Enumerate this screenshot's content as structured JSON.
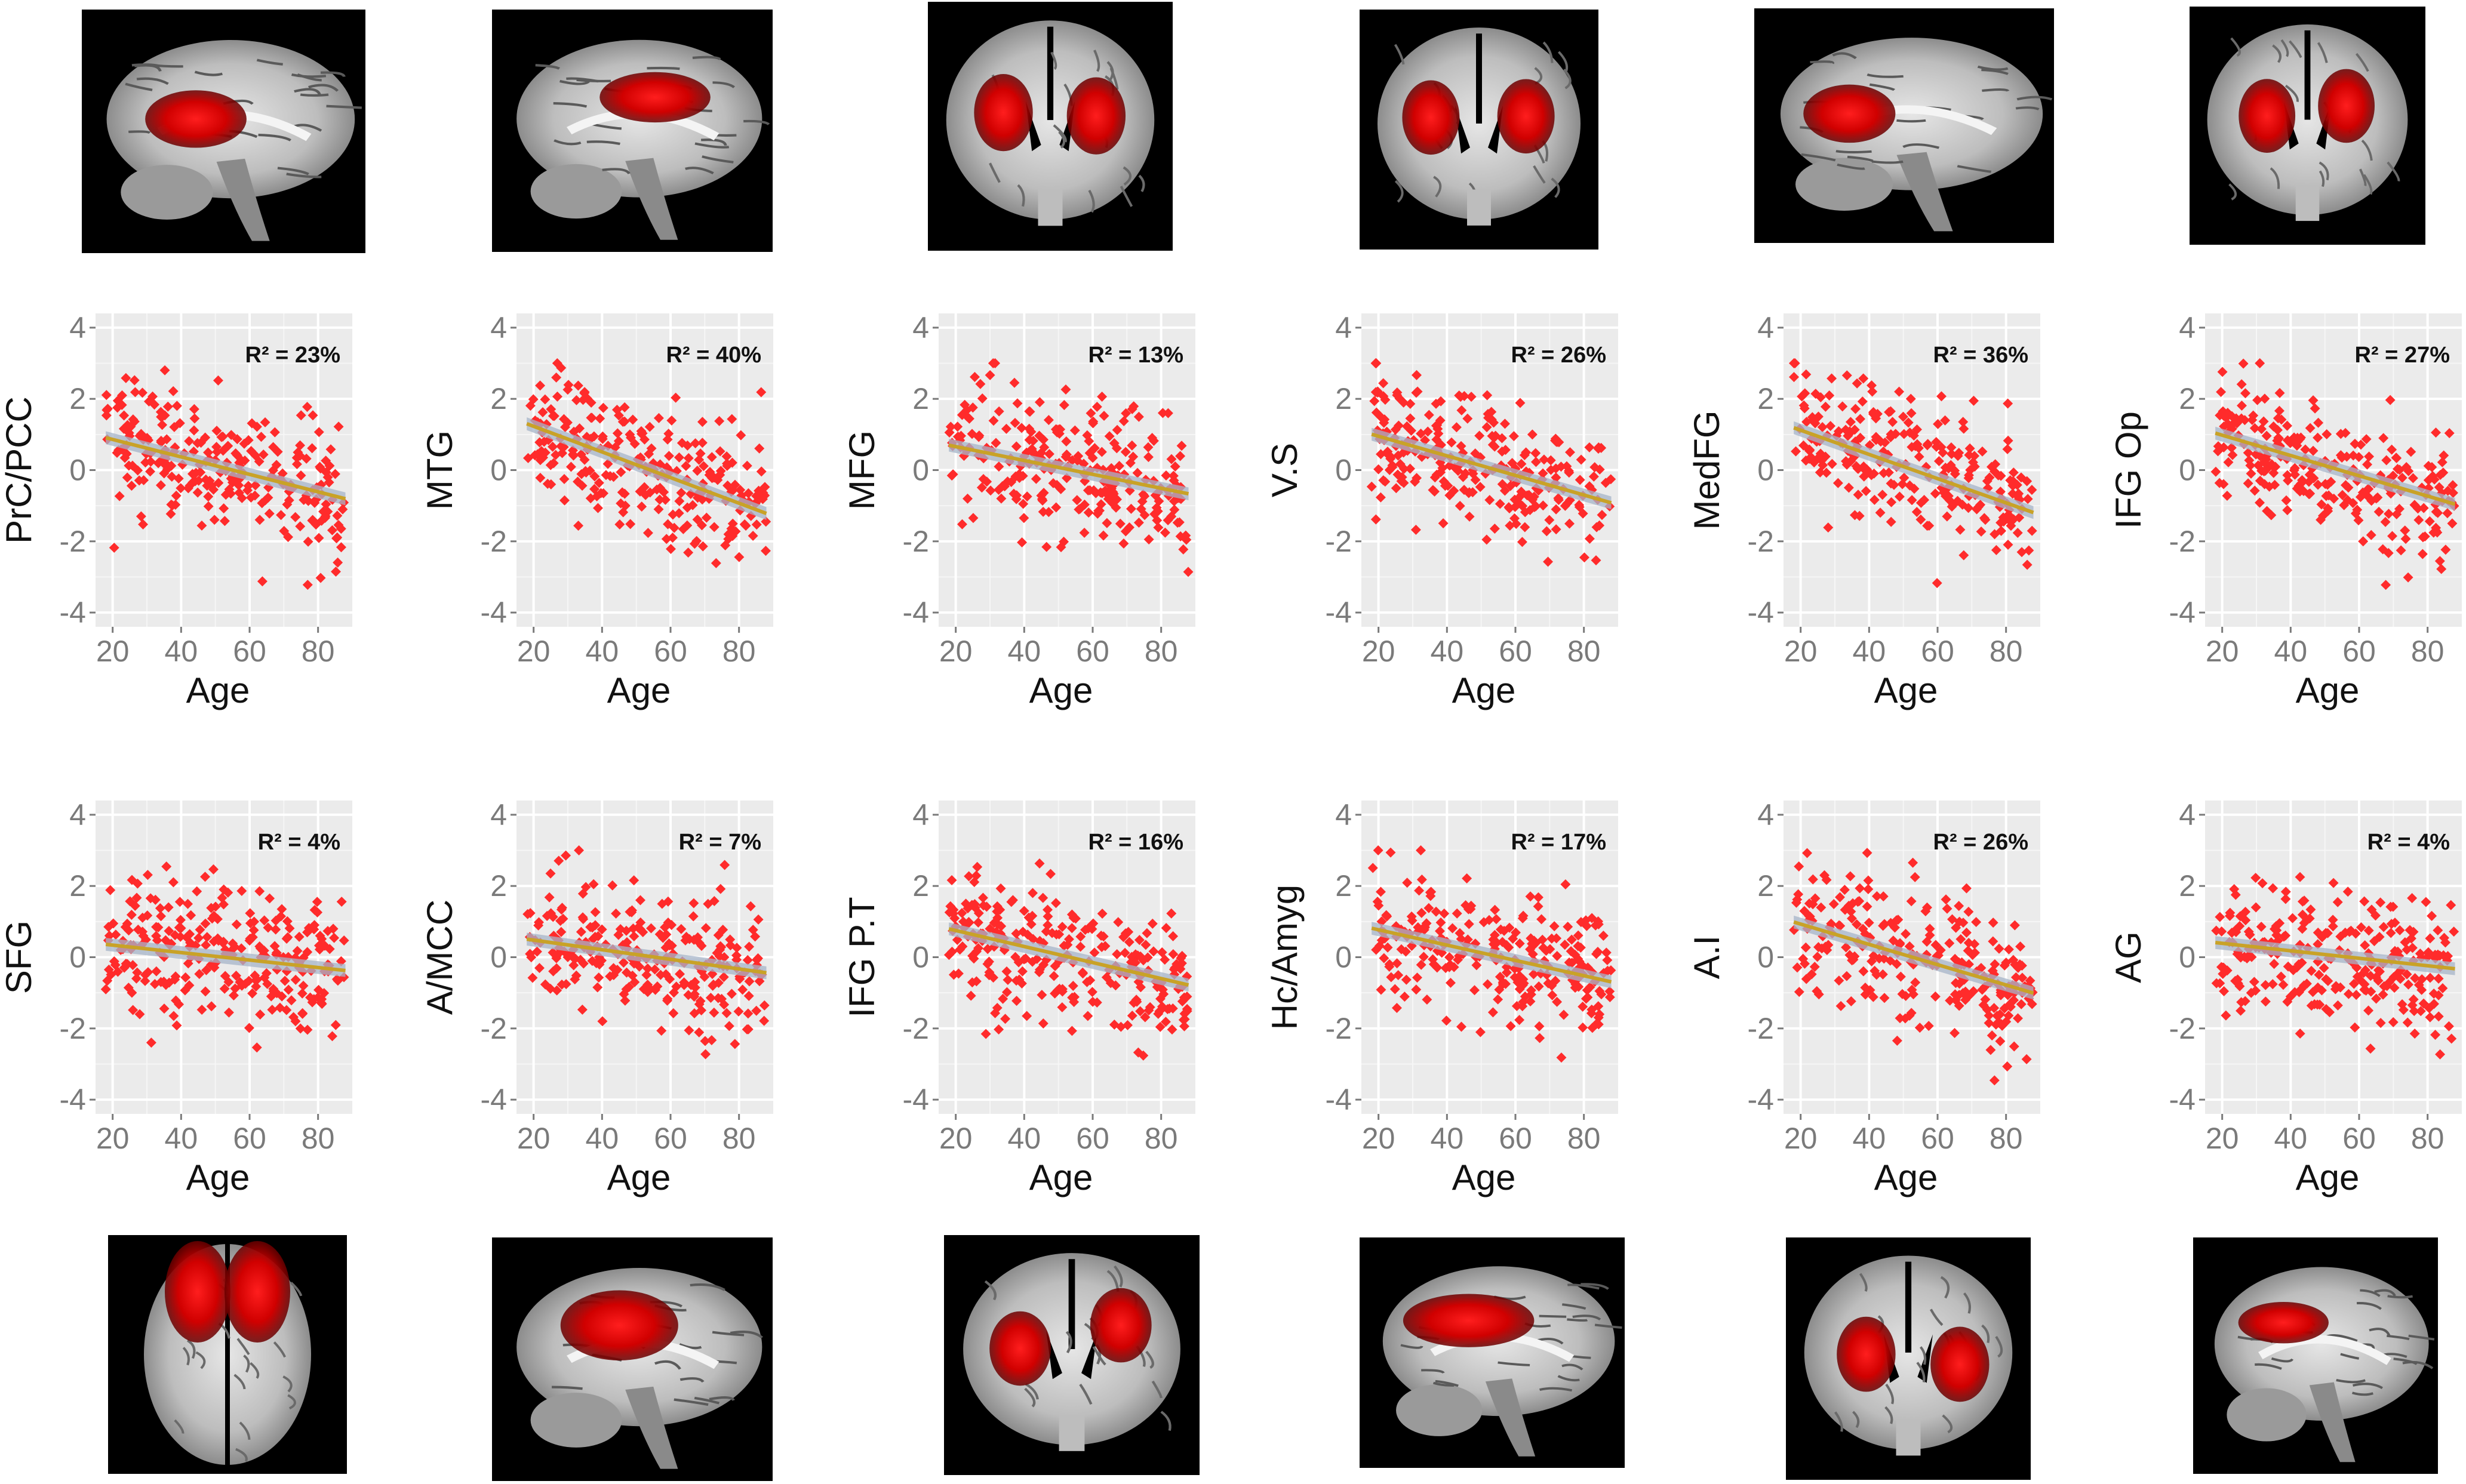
{
  "chart_data": [
    {
      "type": "scatter",
      "ylabel": "PrC/PCC",
      "xlabel": "Age",
      "annotation": "R² = 23%",
      "x_ticks": [
        20,
        40,
        60,
        80
      ],
      "y_ticks": [
        4,
        2,
        0,
        -2,
        -4
      ],
      "xlim": [
        15,
        90
      ],
      "ylim": [
        -4.4,
        4.4
      ],
      "trend": {
        "slope": -0.0245,
        "intercept": 1.35
      },
      "grid": true,
      "point_count": 260,
      "colors": {
        "points": "#ff2b2b",
        "trend": "#c9a227",
        "band": "#a6b4c8",
        "panel": "#ebebeb"
      }
    },
    {
      "type": "scatter",
      "ylabel": "MTG",
      "xlabel": "Age",
      "annotation": "R² = 40%",
      "x_ticks": [
        20,
        40,
        60,
        80
      ],
      "y_ticks": [
        4,
        2,
        0,
        -2,
        -4
      ],
      "xlim": [
        15,
        90
      ],
      "ylim": [
        -4.4,
        4.4
      ],
      "trend": {
        "slope": -0.036,
        "intercept": 1.95
      },
      "grid": true,
      "point_count": 260,
      "colors": {
        "points": "#ff2b2b",
        "trend": "#c9a227",
        "band": "#a6b4c8",
        "panel": "#ebebeb"
      }
    },
    {
      "type": "scatter",
      "ylabel": "MFG",
      "xlabel": "Age",
      "annotation": "R² = 13%",
      "x_ticks": [
        20,
        40,
        60,
        80
      ],
      "y_ticks": [
        4,
        2,
        0,
        -2,
        -4
      ],
      "xlim": [
        15,
        90
      ],
      "ylim": [
        -4.4,
        4.4
      ],
      "trend": {
        "slope": -0.0195,
        "intercept": 1.05
      },
      "grid": true,
      "point_count": 260,
      "colors": {
        "points": "#ff2b2b",
        "trend": "#c9a227",
        "band": "#a6b4c8",
        "panel": "#ebebeb"
      }
    },
    {
      "type": "scatter",
      "ylabel": "V.S",
      "xlabel": "Age",
      "annotation": "R² = 26%",
      "x_ticks": [
        20,
        40,
        60,
        80
      ],
      "y_ticks": [
        4,
        2,
        0,
        -2,
        -4
      ],
      "xlim": [
        15,
        90
      ],
      "ylim": [
        -4.4,
        4.4
      ],
      "trend": {
        "slope": -0.0275,
        "intercept": 1.5
      },
      "grid": true,
      "point_count": 260,
      "colors": {
        "points": "#ff2b2b",
        "trend": "#c9a227",
        "band": "#a6b4c8",
        "panel": "#ebebeb"
      }
    },
    {
      "type": "scatter",
      "ylabel": "MedFG",
      "xlabel": "Age",
      "annotation": "R² = 36%",
      "x_ticks": [
        20,
        40,
        60,
        80
      ],
      "y_ticks": [
        4,
        2,
        0,
        -2,
        -4
      ],
      "xlim": [
        15,
        90
      ],
      "ylim": [
        -4.4,
        4.4
      ],
      "trend": {
        "slope": -0.034,
        "intercept": 1.8
      },
      "grid": true,
      "point_count": 260,
      "colors": {
        "points": "#ff2b2b",
        "trend": "#c9a227",
        "band": "#a6b4c8",
        "panel": "#ebebeb"
      }
    },
    {
      "type": "scatter",
      "ylabel": "IFG Op",
      "xlabel": "Age",
      "annotation": "R² = 27%",
      "x_ticks": [
        20,
        40,
        60,
        80
      ],
      "y_ticks": [
        4,
        2,
        0,
        -2,
        -4
      ],
      "xlim": [
        15,
        90
      ],
      "ylim": [
        -4.4,
        4.4
      ],
      "trend": {
        "slope": -0.0285,
        "intercept": 1.55
      },
      "grid": true,
      "point_count": 260,
      "colors": {
        "points": "#ff2b2b",
        "trend": "#c9a227",
        "band": "#a6b4c8",
        "panel": "#ebebeb"
      }
    },
    {
      "type": "scatter",
      "ylabel": "SFG",
      "xlabel": "Age",
      "annotation": "R² = 4%",
      "x_ticks": [
        20,
        40,
        60,
        80
      ],
      "y_ticks": [
        4,
        2,
        0,
        -2,
        -4
      ],
      "xlim": [
        15,
        90
      ],
      "ylim": [
        -4.4,
        4.4
      ],
      "trend": {
        "slope": -0.0105,
        "intercept": 0.55
      },
      "grid": true,
      "point_count": 260,
      "colors": {
        "points": "#ff2b2b",
        "trend": "#c9a227",
        "band": "#a6b4c8",
        "panel": "#ebebeb"
      }
    },
    {
      "type": "scatter",
      "ylabel": "A/MCC",
      "xlabel": "Age",
      "annotation": "R² = 7%",
      "x_ticks": [
        20,
        40,
        60,
        80
      ],
      "y_ticks": [
        4,
        2,
        0,
        -2,
        -4
      ],
      "xlim": [
        15,
        90
      ],
      "ylim": [
        -4.4,
        4.4
      ],
      "trend": {
        "slope": -0.0135,
        "intercept": 0.75
      },
      "grid": true,
      "point_count": 260,
      "colors": {
        "points": "#ff2b2b",
        "trend": "#c9a227",
        "band": "#a6b4c8",
        "panel": "#ebebeb"
      }
    },
    {
      "type": "scatter",
      "ylabel": "IFG P.T",
      "xlabel": "Age",
      "annotation": "R² = 16%",
      "x_ticks": [
        20,
        40,
        60,
        80
      ],
      "y_ticks": [
        4,
        2,
        0,
        -2,
        -4
      ],
      "xlim": [
        15,
        90
      ],
      "ylim": [
        -4.4,
        4.4
      ],
      "trend": {
        "slope": -0.0225,
        "intercept": 1.2
      },
      "grid": true,
      "point_count": 260,
      "colors": {
        "points": "#ff2b2b",
        "trend": "#c9a227",
        "band": "#a6b4c8",
        "panel": "#ebebeb"
      }
    },
    {
      "type": "scatter",
      "ylabel": "Hc/Amyg",
      "xlabel": "Age",
      "annotation": "R² = 17%",
      "x_ticks": [
        20,
        40,
        60,
        80
      ],
      "y_ticks": [
        4,
        2,
        0,
        -2,
        -4
      ],
      "xlim": [
        15,
        90
      ],
      "ylim": [
        -4.4,
        4.4
      ],
      "trend": {
        "slope": -0.0215,
        "intercept": 1.2
      },
      "grid": true,
      "point_count": 260,
      "colors": {
        "points": "#ff2b2b",
        "trend": "#c9a227",
        "band": "#a6b4c8",
        "panel": "#ebebeb"
      }
    },
    {
      "type": "scatter",
      "ylabel": "A.I",
      "xlabel": "Age",
      "annotation": "R² = 26%",
      "x_ticks": [
        20,
        40,
        60,
        80
      ],
      "y_ticks": [
        4,
        2,
        0,
        -2,
        -4
      ],
      "xlim": [
        15,
        90
      ],
      "ylim": [
        -4.4,
        4.4
      ],
      "trend": {
        "slope": -0.0285,
        "intercept": 1.5
      },
      "grid": true,
      "point_count": 260,
      "colors": {
        "points": "#ff2b2b",
        "trend": "#c9a227",
        "band": "#a6b4c8",
        "panel": "#ebebeb"
      }
    },
    {
      "type": "scatter",
      "ylabel": "AG",
      "xlabel": "Age",
      "annotation": "R² = 4%",
      "x_ticks": [
        20,
        40,
        60,
        80
      ],
      "y_ticks": [
        4,
        2,
        0,
        -2,
        -4
      ],
      "xlim": [
        15,
        90
      ],
      "ylim": [
        -4.4,
        4.4
      ],
      "trend": {
        "slope": -0.0105,
        "intercept": 0.6
      },
      "grid": true,
      "point_count": 260,
      "colors": {
        "points": "#ff2b2b",
        "trend": "#c9a227",
        "band": "#a6b4c8",
        "panel": "#ebebeb"
      }
    }
  ],
  "brain_images": [
    {
      "view": "sagittal",
      "highlight": "red"
    },
    {
      "view": "sagittal",
      "highlight": "red"
    },
    {
      "view": "coronal",
      "highlight": "red"
    },
    {
      "view": "coronal",
      "highlight": "red"
    },
    {
      "view": "sagittal",
      "highlight": "red"
    },
    {
      "view": "coronal",
      "highlight": "red"
    },
    {
      "view": "axial",
      "highlight": "red"
    },
    {
      "view": "sagittal",
      "highlight": "red"
    },
    {
      "view": "coronal",
      "highlight": "red"
    },
    {
      "view": "sagittal",
      "highlight": "red"
    },
    {
      "view": "coronal",
      "highlight": "red"
    },
    {
      "view": "sagittal",
      "highlight": "red"
    }
  ]
}
